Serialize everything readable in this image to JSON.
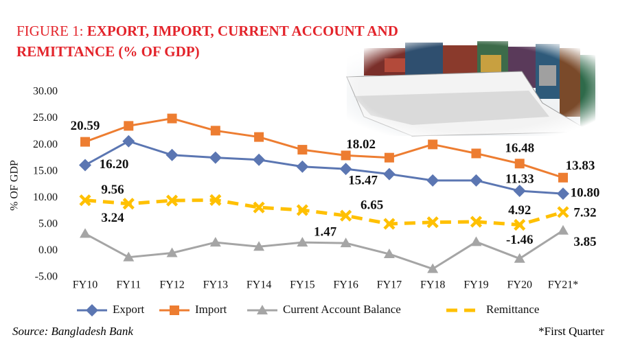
{
  "chart_data": {
    "type": "line",
    "figure_label": "FIGURE 1:",
    "title": "EXPORT, IMPORT, CURRENT ACCOUNT AND REMITTANCE (% OF GDP)",
    "y_label": "% OF GDP",
    "source": "Source: Bangladesh Bank",
    "footnote": "*First Quarter",
    "categories": [
      "FY10",
      "FY11",
      "FY12",
      "FY13",
      "FY14",
      "FY15",
      "FY16",
      "FY17",
      "FY18",
      "FY19",
      "FY20",
      "FY21*"
    ],
    "ylim": [
      -5,
      30
    ],
    "yticks": [
      {
        "value": -5,
        "label": "-5.00"
      },
      {
        "value": 0,
        "label": "0.00"
      },
      {
        "value": 5,
        "label": "5.00"
      },
      {
        "value": 10,
        "label": "10.00"
      },
      {
        "value": 15,
        "label": "15.00"
      },
      {
        "value": 20,
        "label": "20.00"
      },
      {
        "value": 25,
        "label": "25.00"
      },
      {
        "value": 30,
        "label": "30.00"
      }
    ],
    "grid": false,
    "legend": "bottom",
    "series": [
      {
        "name": "Export",
        "color": "#5b76b2",
        "marker": "diamond",
        "dashed": false,
        "values": [
          16.2,
          20.7,
          18.1,
          17.6,
          17.2,
          15.9,
          15.47,
          14.5,
          13.3,
          13.3,
          11.33,
          10.8
        ],
        "value_labels": [
          "16.20",
          null,
          null,
          null,
          null,
          null,
          "15.47",
          null,
          null,
          null,
          "11.33",
          "10.80"
        ]
      },
      {
        "name": "Import",
        "color": "#ed7d31",
        "marker": "square",
        "dashed": false,
        "values": [
          20.59,
          23.6,
          25.0,
          22.7,
          21.5,
          19.1,
          18.02,
          17.6,
          20.1,
          18.4,
          16.48,
          13.83
        ],
        "value_labels": [
          "20.59",
          null,
          null,
          null,
          null,
          null,
          "18.02",
          null,
          null,
          null,
          "16.48",
          "13.83"
        ]
      },
      {
        "name": "Current Account Balance",
        "color": "#a5a5a5",
        "marker": "triangle",
        "dashed": false,
        "values": [
          3.24,
          -1.2,
          -0.4,
          1.6,
          0.8,
          1.6,
          1.47,
          -0.6,
          -3.4,
          1.7,
          -1.46,
          3.85
        ],
        "value_labels": [
          "3.24",
          null,
          null,
          null,
          null,
          null,
          "1.47",
          null,
          null,
          null,
          "-1.46",
          "3.85"
        ]
      },
      {
        "name": "Remittance",
        "color": "#ffc000",
        "marker": "x",
        "dashed": true,
        "values": [
          9.56,
          8.9,
          9.5,
          9.6,
          8.2,
          7.7,
          6.65,
          5.1,
          5.4,
          5.5,
          4.92,
          7.32
        ],
        "value_labels": [
          "9.56",
          null,
          null,
          null,
          null,
          null,
          "6.65",
          null,
          null,
          null,
          "4.92",
          "7.32"
        ]
      }
    ]
  }
}
